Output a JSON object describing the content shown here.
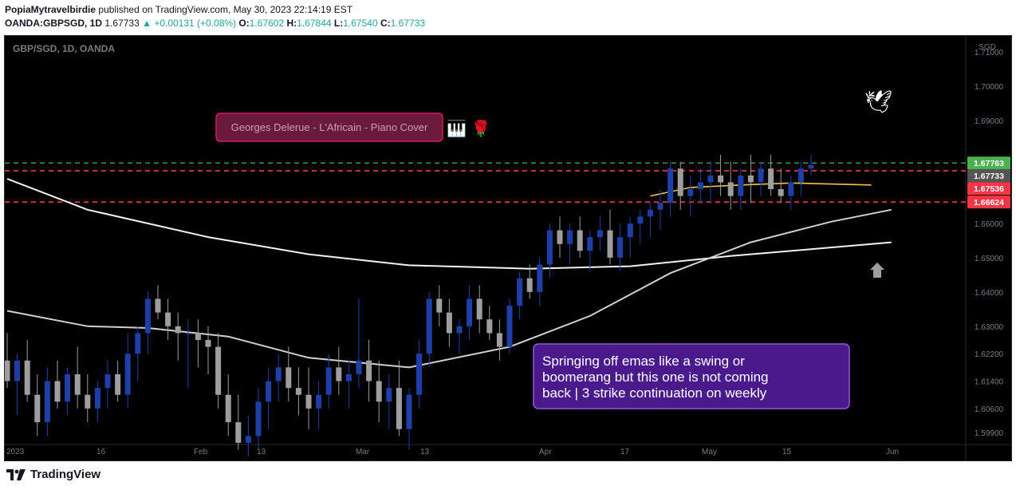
{
  "header": {
    "author": "PopiaMytravelbirdie",
    "published": "published on TradingView.com, May 30, 2023 22:14:19 EST",
    "symbol": "OANDA:GBPSGD, 1D",
    "last": "1.67733",
    "change": "+0.00131 (+0.08%)",
    "open_label": "O:",
    "open": "1.67602",
    "high_label": "H:",
    "high": "1.67844",
    "low_label": "L:",
    "low": "1.67540",
    "close_label": "C:",
    "close": "1.67733"
  },
  "chart_title": "GBP/SGD, 1D, OANDA",
  "currency": "SGD",
  "song_label": "Georges Delerue - L'Africain - Piano Cover",
  "song_icons": "🎹 🌹",
  "dove_icon": "🕊",
  "annotation": "Springing off emas like a swing or boomerang but this one is not coming back | 3 strike continuation on weekly",
  "annotation_lines": [
    "Springing off emas like a swing or",
    "boomerang but this one is not coming",
    "back | 3 strike continuation on weekly"
  ],
  "brand": "TradingView",
  "colors": {
    "bull": "#1e3fa8",
    "bear": "#9e9e9e",
    "level_green": "#4caf50",
    "level_red": "#f23645",
    "ema_fast": "#f5c542",
    "ema_slow": "#ffffff"
  },
  "chart_data": {
    "type": "candlestick",
    "title": "GBP/SGD, 1D, OANDA",
    "ylim": [
      1.5955,
      1.7147
    ],
    "y_ticks": [
      1.71,
      1.7,
      1.69,
      1.68,
      1.67,
      1.66,
      1.65,
      1.64,
      1.63,
      1.622,
      1.614,
      1.606,
      1.599
    ],
    "y_tick_labels": [
      "1.71000",
      "1.70000",
      "1.69000",
      "",
      "1.67000",
      "1.66000",
      "1.65000",
      "1.64000",
      "1.63000",
      "1.62200",
      "1.61400",
      "1.60600",
      "1.59900"
    ],
    "x_ticks": [
      "2023",
      "16",
      "Feb",
      "13",
      "Mar",
      "13",
      "Apr",
      "17",
      "May",
      "15",
      "Jun"
    ],
    "price_tags": [
      {
        "value": 1.67763,
        "label": "1.67763",
        "color": "#4caf50",
        "dashed": true
      },
      {
        "value": 1.67733,
        "label": "1.67733",
        "color": "#555555",
        "dashed": false
      },
      {
        "value": 1.67536,
        "label": "1.67536",
        "color": "#f23645",
        "dashed": true
      },
      {
        "value": 1.66624,
        "label": "1.66624",
        "color": "#f23645",
        "dashed": true
      }
    ],
    "ohlc": [
      [
        1.62,
        1.628,
        1.612,
        1.614
      ],
      [
        1.614,
        1.622,
        1.604,
        1.62
      ],
      [
        1.62,
        1.626,
        1.608,
        1.61
      ],
      [
        1.61,
        1.616,
        1.598,
        1.602
      ],
      [
        1.602,
        1.618,
        1.598,
        1.614
      ],
      [
        1.614,
        1.62,
        1.606,
        1.608
      ],
      [
        1.608,
        1.618,
        1.604,
        1.616
      ],
      [
        1.616,
        1.624,
        1.606,
        1.61
      ],
      [
        1.61,
        1.616,
        1.602,
        1.606
      ],
      [
        1.606,
        1.614,
        1.602,
        1.612
      ],
      [
        1.612,
        1.62,
        1.606,
        1.616
      ],
      [
        1.616,
        1.62,
        1.608,
        1.61
      ],
      [
        1.61,
        1.628,
        1.606,
        1.622
      ],
      [
        1.622,
        1.63,
        1.614,
        1.628
      ],
      [
        1.628,
        1.64,
        1.622,
        1.638
      ],
      [
        1.638,
        1.642,
        1.632,
        1.634
      ],
      [
        1.634,
        1.638,
        1.626,
        1.63
      ],
      [
        1.63,
        1.634,
        1.62,
        1.628
      ],
      [
        1.628,
        1.632,
        1.612,
        1.628
      ],
      [
        1.628,
        1.632,
        1.618,
        1.626
      ],
      [
        1.626,
        1.63,
        1.616,
        1.624
      ],
      [
        1.624,
        1.628,
        1.606,
        1.61
      ],
      [
        1.61,
        1.616,
        1.598,
        1.602
      ],
      [
        1.602,
        1.61,
        1.594,
        1.596
      ],
      [
        1.596,
        1.604,
        1.592,
        1.598
      ],
      [
        1.598,
        1.612,
        1.594,
        1.608
      ],
      [
        1.608,
        1.618,
        1.6,
        1.614
      ],
      [
        1.614,
        1.622,
        1.608,
        1.618
      ],
      [
        1.618,
        1.624,
        1.608,
        1.612
      ],
      [
        1.612,
        1.618,
        1.604,
        1.61
      ],
      [
        1.61,
        1.618,
        1.6,
        1.606
      ],
      [
        1.606,
        1.614,
        1.6,
        1.61
      ],
      [
        1.61,
        1.622,
        1.606,
        1.618
      ],
      [
        1.618,
        1.624,
        1.61,
        1.614
      ],
      [
        1.614,
        1.62,
        1.606,
        1.616
      ],
      [
        1.616,
        1.638,
        1.612,
        1.62
      ],
      [
        1.62,
        1.626,
        1.608,
        1.614
      ],
      [
        1.614,
        1.62,
        1.602,
        1.608
      ],
      [
        1.608,
        1.616,
        1.6,
        1.612
      ],
      [
        1.612,
        1.62,
        1.598,
        1.6
      ],
      [
        1.6,
        1.612,
        1.594,
        1.61
      ],
      [
        1.61,
        1.626,
        1.606,
        1.622
      ],
      [
        1.622,
        1.64,
        1.618,
        1.638
      ],
      [
        1.638,
        1.642,
        1.63,
        1.634
      ],
      [
        1.634,
        1.638,
        1.624,
        1.628
      ],
      [
        1.628,
        1.632,
        1.622,
        1.63
      ],
      [
        1.63,
        1.642,
        1.626,
        1.638
      ],
      [
        1.638,
        1.642,
        1.628,
        1.632
      ],
      [
        1.632,
        1.636,
        1.626,
        1.628
      ],
      [
        1.628,
        1.632,
        1.62,
        1.624
      ],
      [
        1.624,
        1.638,
        1.622,
        1.636
      ],
      [
        1.636,
        1.646,
        1.632,
        1.644
      ],
      [
        1.644,
        1.648,
        1.638,
        1.64
      ],
      [
        1.64,
        1.65,
        1.636,
        1.648
      ],
      [
        1.648,
        1.66,
        1.644,
        1.658
      ],
      [
        1.658,
        1.662,
        1.65,
        1.654
      ],
      [
        1.654,
        1.66,
        1.648,
        1.658
      ],
      [
        1.658,
        1.662,
        1.65,
        1.652
      ],
      [
        1.652,
        1.658,
        1.646,
        1.656
      ],
      [
        1.656,
        1.662,
        1.652,
        1.658
      ],
      [
        1.658,
        1.664,
        1.648,
        1.65
      ],
      [
        1.65,
        1.66,
        1.646,
        1.656
      ],
      [
        1.656,
        1.662,
        1.65,
        1.66
      ],
      [
        1.66,
        1.664,
        1.654,
        1.662
      ],
      [
        1.662,
        1.666,
        1.656,
        1.664
      ],
      [
        1.664,
        1.67,
        1.658,
        1.666
      ],
      [
        1.666,
        1.678,
        1.662,
        1.676
      ],
      [
        1.676,
        1.678,
        1.664,
        1.668
      ],
      [
        1.668,
        1.674,
        1.662,
        1.67
      ],
      [
        1.67,
        1.676,
        1.666,
        1.672
      ],
      [
        1.672,
        1.678,
        1.666,
        1.674
      ],
      [
        1.674,
        1.68,
        1.668,
        1.672
      ],
      [
        1.672,
        1.678,
        1.664,
        1.668
      ],
      [
        1.668,
        1.676,
        1.664,
        1.674
      ],
      [
        1.674,
        1.68,
        1.666,
        1.672
      ],
      [
        1.672,
        1.678,
        1.668,
        1.676
      ],
      [
        1.676,
        1.68,
        1.668,
        1.67
      ],
      [
        1.67,
        1.676,
        1.666,
        1.668
      ],
      [
        1.668,
        1.674,
        1.664,
        1.672
      ],
      [
        1.672,
        1.678,
        1.668,
        1.676
      ],
      [
        1.676,
        1.68,
        1.674,
        1.677
      ]
    ],
    "ema_fast": [
      [
        64,
        1.668
      ],
      [
        68,
        1.6705
      ],
      [
        73,
        1.6712
      ],
      [
        78,
        1.6718
      ],
      [
        86,
        1.6712
      ]
    ],
    "ema_mid": [
      [
        0,
        1.6345
      ],
      [
        8,
        1.63
      ],
      [
        14,
        1.6295
      ],
      [
        22,
        1.627
      ],
      [
        30,
        1.6208
      ],
      [
        40,
        1.618
      ],
      [
        50,
        1.624
      ],
      [
        58,
        1.633
      ],
      [
        66,
        1.6455
      ],
      [
        74,
        1.6545
      ],
      [
        82,
        1.6605
      ],
      [
        88,
        1.664
      ]
    ],
    "ema_slow": [
      [
        0,
        1.673
      ],
      [
        8,
        1.664
      ],
      [
        20,
        1.656
      ],
      [
        30,
        1.651
      ],
      [
        40,
        1.6478
      ],
      [
        52,
        1.6468
      ],
      [
        62,
        1.6475
      ],
      [
        72,
        1.6505
      ],
      [
        80,
        1.6525
      ],
      [
        88,
        1.6545
      ]
    ]
  }
}
